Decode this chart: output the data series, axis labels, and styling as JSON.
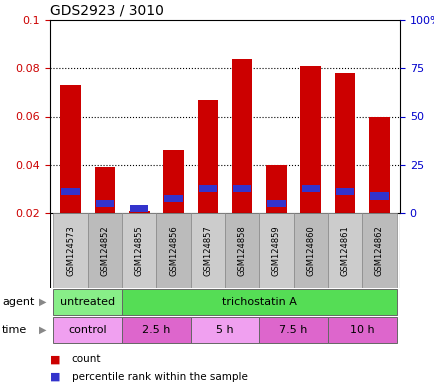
{
  "title": "GDS2923 / 3010",
  "samples": [
    "GSM124573",
    "GSM124852",
    "GSM124855",
    "GSM124856",
    "GSM124857",
    "GSM124858",
    "GSM124859",
    "GSM124860",
    "GSM124861",
    "GSM124862"
  ],
  "count_values": [
    0.073,
    0.039,
    0.021,
    0.046,
    0.067,
    0.084,
    0.04,
    0.081,
    0.078,
    0.06
  ],
  "percentile_values": [
    0.029,
    0.024,
    0.022,
    0.026,
    0.03,
    0.03,
    0.024,
    0.03,
    0.029,
    0.027
  ],
  "count_color": "#cc0000",
  "percentile_color": "#3333cc",
  "ylim_left": [
    0.02,
    0.1
  ],
  "ylim_right": [
    0,
    100
  ],
  "yticks_left": [
    0.02,
    0.04,
    0.06,
    0.08,
    0.1
  ],
  "yticks_left_labels": [
    "0.02",
    "0.04",
    "0.06",
    "0.08",
    "0.1"
  ],
  "yticks_right": [
    0,
    25,
    50,
    75,
    100
  ],
  "yticks_right_labels": [
    "0",
    "25",
    "50",
    "75",
    "100%"
  ],
  "agent_labels": [
    {
      "text": "untreated",
      "start": 0,
      "end": 2,
      "color": "#88ee88"
    },
    {
      "text": "trichostatin A",
      "start": 2,
      "end": 10,
      "color": "#55dd55"
    }
  ],
  "time_labels": [
    {
      "text": "control",
      "start": 0,
      "end": 2,
      "color": "#f0a0f0"
    },
    {
      "text": "2.5 h",
      "start": 2,
      "end": 4,
      "color": "#dd66cc"
    },
    {
      "text": "5 h",
      "start": 4,
      "end": 6,
      "color": "#f0a0f0"
    },
    {
      "text": "7.5 h",
      "start": 6,
      "end": 8,
      "color": "#dd66cc"
    },
    {
      "text": "10 h",
      "start": 8,
      "end": 10,
      "color": "#dd66cc"
    }
  ],
  "bar_width": 0.6,
  "background_color": "#ffffff",
  "tick_label_color_left": "#cc0000",
  "tick_label_color_right": "#0000cc",
  "sample_box_color_odd": "#cccccc",
  "sample_box_color_even": "#bbbbbb"
}
